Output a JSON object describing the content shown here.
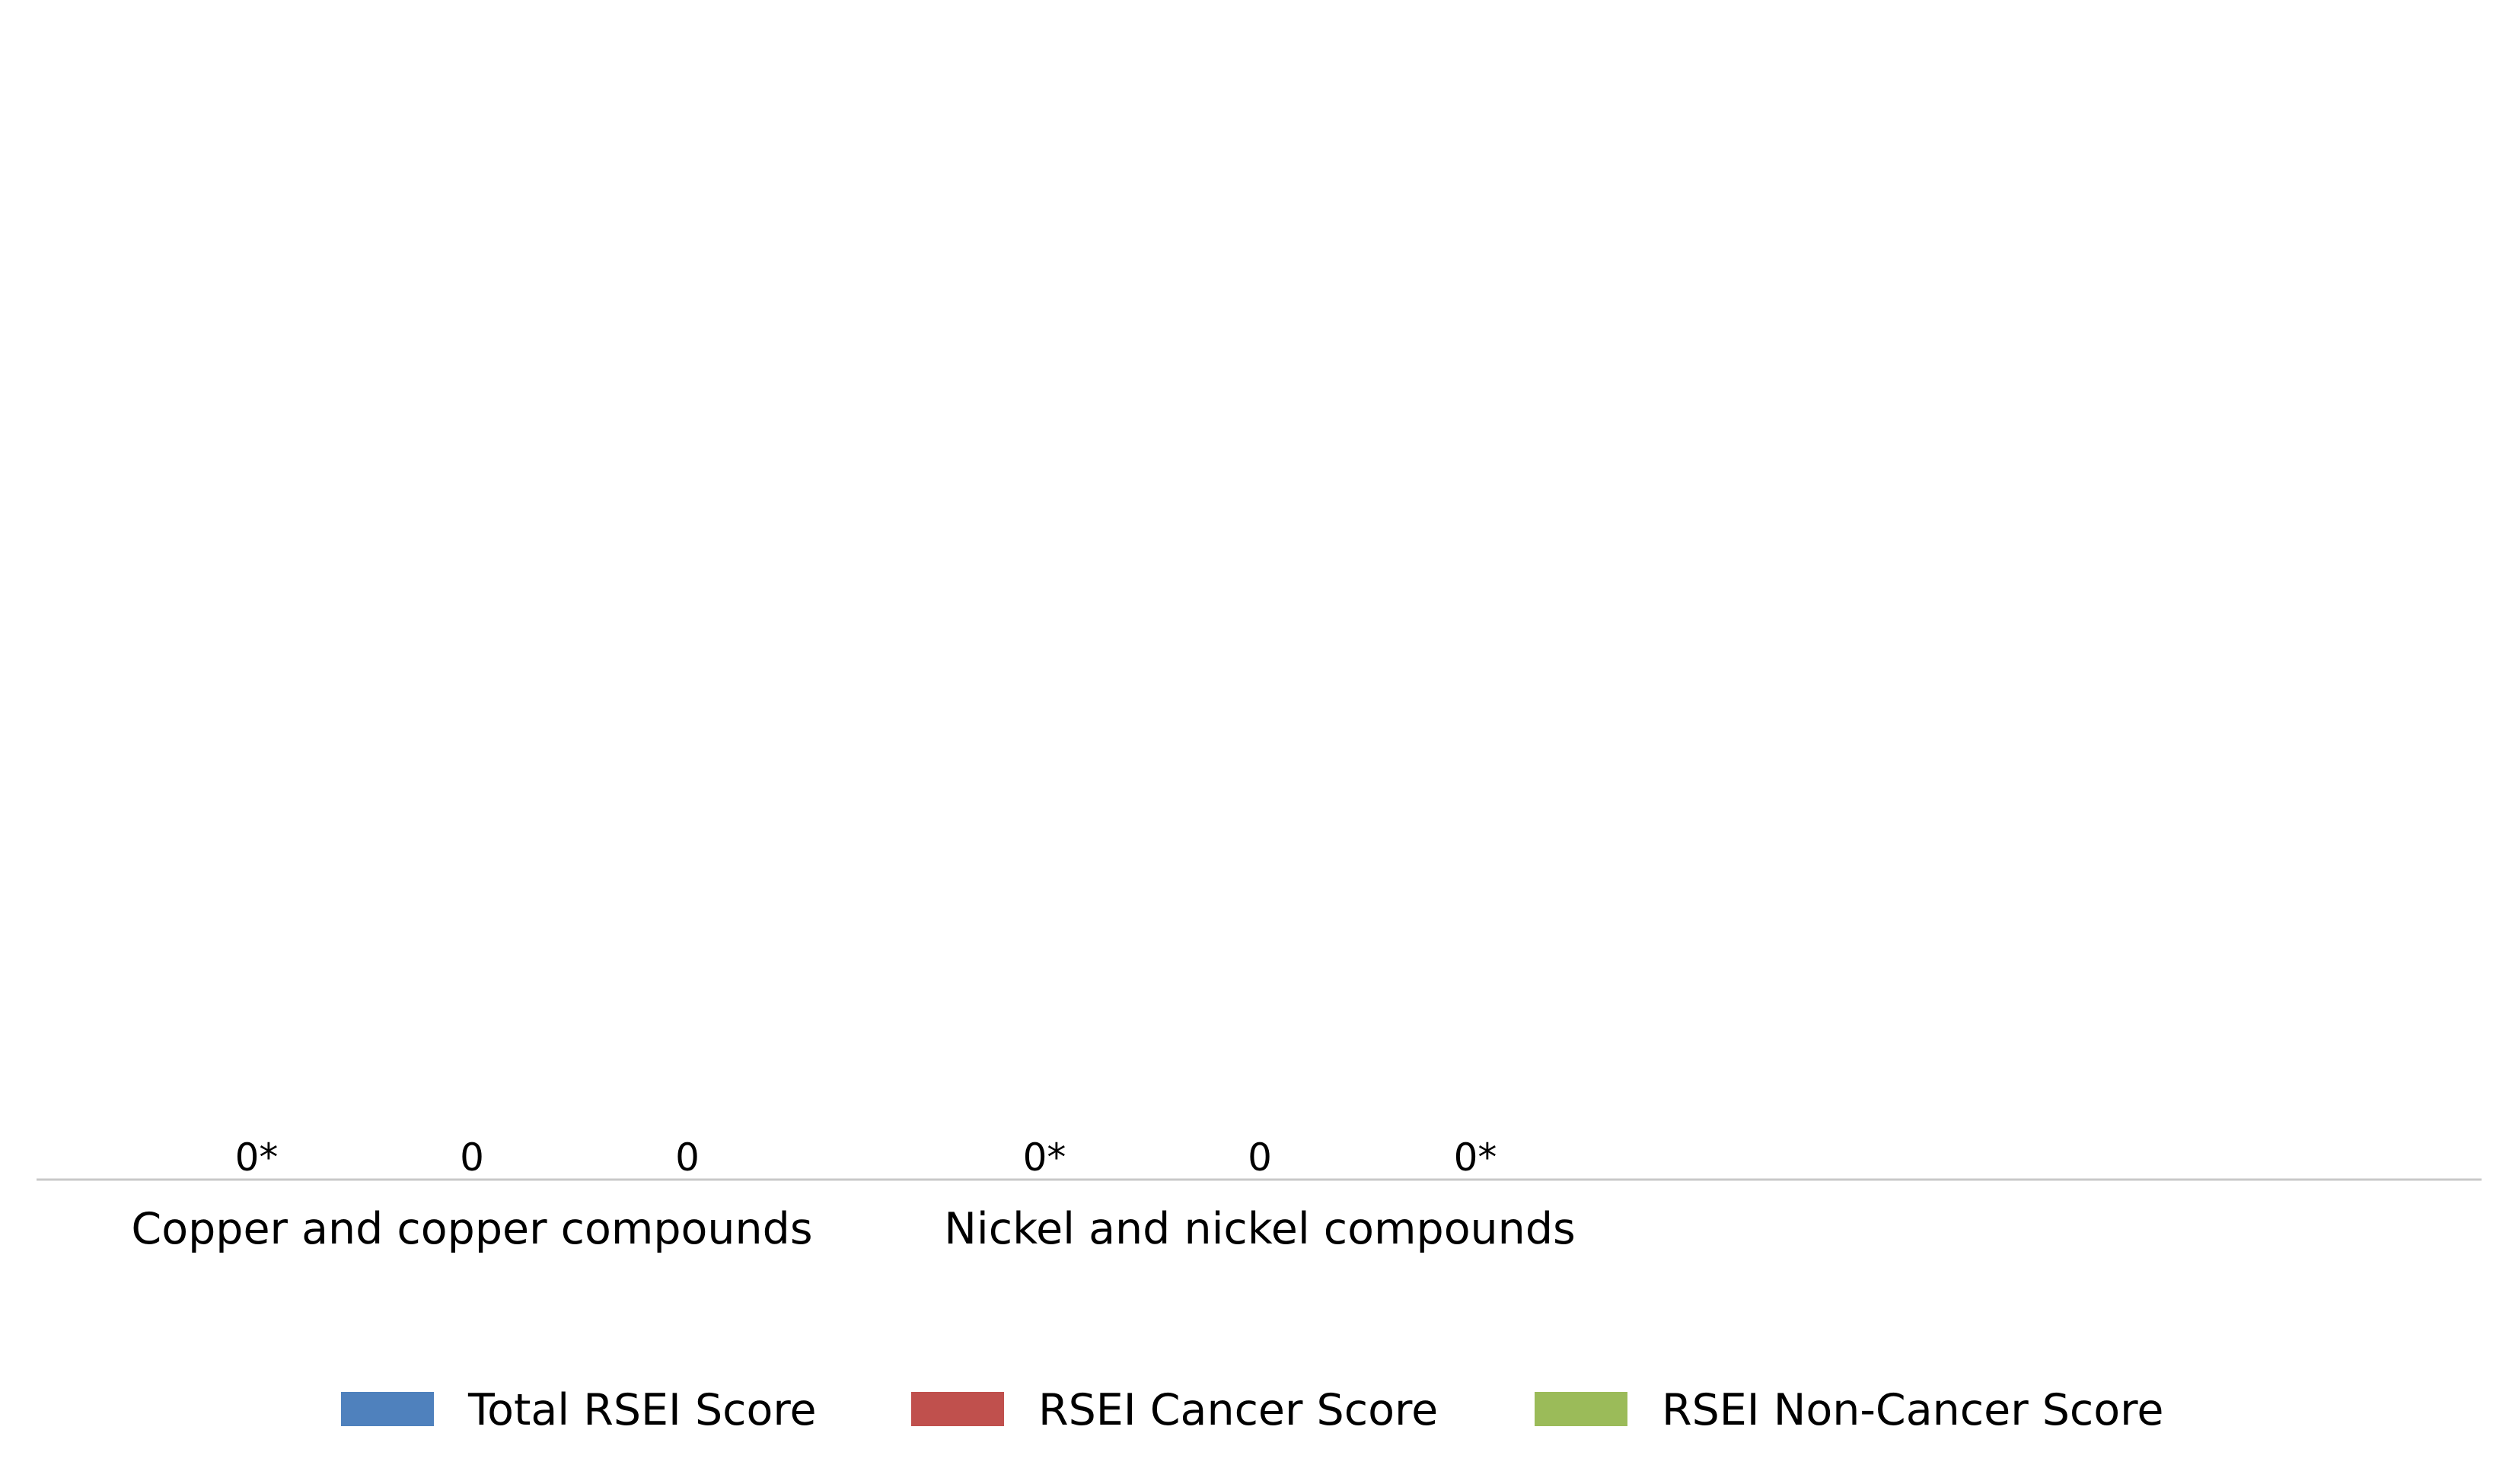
{
  "chart_data": {
    "type": "bar",
    "title": "",
    "xlabel": "",
    "ylabel": "",
    "categories": [
      "Copper and copper compounds",
      "Nickel and nickel compounds"
    ],
    "series": [
      {
        "name": "Total RSEI Score",
        "values": [
          0,
          0
        ],
        "labels": [
          "0*",
          "0*"
        ],
        "color": "#4f81bd"
      },
      {
        "name": "RSEI Cancer Score",
        "values": [
          0,
          0
        ],
        "labels": [
          "0",
          "0"
        ],
        "color": "#c0504d"
      },
      {
        "name": "RSEI Non-Cancer Score",
        "values": [
          0,
          0
        ],
        "labels": [
          "0",
          "0*"
        ],
        "color": "#9bbb59"
      }
    ],
    "ylim": [
      0,
      1
    ],
    "grid": false,
    "legend_position": "bottom",
    "axis_color": "#c8c8c8"
  }
}
